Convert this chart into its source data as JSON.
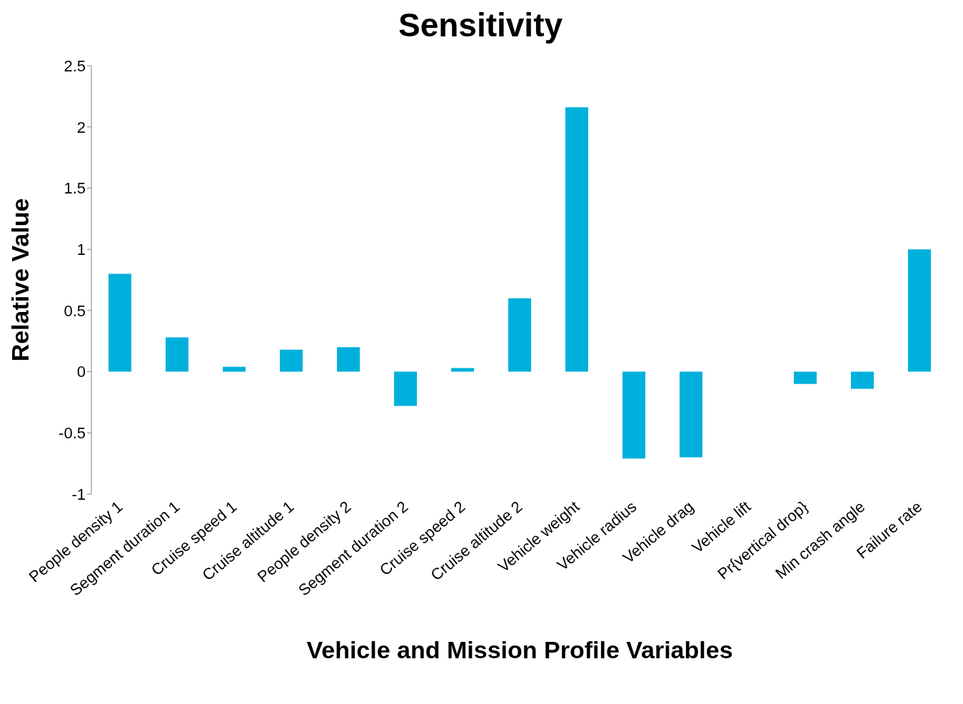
{
  "chart_data": {
    "type": "bar",
    "title": "Sensitivity",
    "xlabel": "Vehicle and Mission Profile Variables",
    "ylabel": "Relative Value",
    "categories": [
      "People density 1",
      "Segment duration 1",
      "Cruise speed 1",
      "Cruise altitude 1",
      "People density 2",
      "Segment duration 2",
      "Cruise speed 2",
      "Cruise altitude 2",
      "Vehicle weight",
      "Vehicle radius",
      "Vehicle drag",
      "Vehicle lift",
      "Pr{vertical drop}",
      "Min crash angle",
      "Failure rate"
    ],
    "values": [
      0.8,
      0.28,
      0.04,
      0.18,
      0.2,
      -0.28,
      0.03,
      0.6,
      2.16,
      -0.71,
      -0.7,
      0,
      -0.1,
      -0.14,
      1.0
    ],
    "color": "#00b0dc",
    "ylim": [
      -1,
      2.5
    ],
    "yticks": [
      -1,
      -0.5,
      0,
      0.5,
      1,
      1.5,
      2,
      2.5
    ],
    "legend": false
  }
}
